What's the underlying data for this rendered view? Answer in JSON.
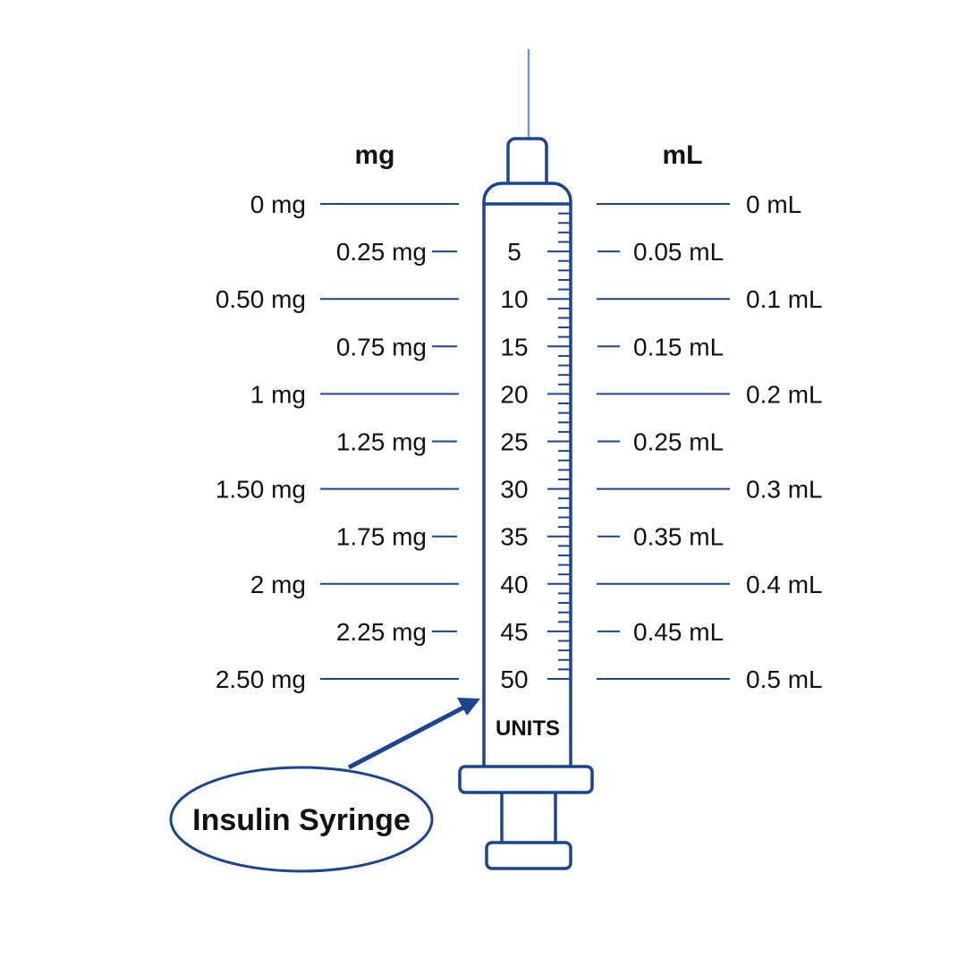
{
  "colors": {
    "stroke": "#1b4590",
    "needle": "#6f97c9",
    "text": "#111111"
  },
  "headers": {
    "left": "mg",
    "right": "mL"
  },
  "rows": [
    {
      "mg": "0 mg",
      "units": "",
      "ml": "0 mL",
      "major": true
    },
    {
      "mg": "0.25 mg",
      "units": "5",
      "ml": "0.05 mL",
      "major": false
    },
    {
      "mg": "0.50 mg",
      "units": "10",
      "ml": "0.1 mL",
      "major": true
    },
    {
      "mg": "0.75 mg",
      "units": "15",
      "ml": "0.15 mL",
      "major": false
    },
    {
      "mg": "1 mg",
      "units": "20",
      "ml": "0.2 mL",
      "major": true
    },
    {
      "mg": "1.25 mg",
      "units": "25",
      "ml": "0.25 mL",
      "major": false
    },
    {
      "mg": "1.50 mg",
      "units": "30",
      "ml": "0.3 mL",
      "major": true
    },
    {
      "mg": "1.75 mg",
      "units": "35",
      "ml": "0.35 mL",
      "major": false
    },
    {
      "mg": "2 mg",
      "units": "40",
      "ml": "0.4 mL",
      "major": true
    },
    {
      "mg": "2.25 mg",
      "units": "45",
      "ml": "0.45 mL",
      "major": false
    },
    {
      "mg": "2.50 mg",
      "units": "50",
      "ml": "0.5 mL",
      "major": true
    }
  ],
  "scale": {
    "max_units": 50,
    "minor_step": 1,
    "major_step": 5
  },
  "units_label": "UNITS",
  "callout": "Insulin Syringe"
}
